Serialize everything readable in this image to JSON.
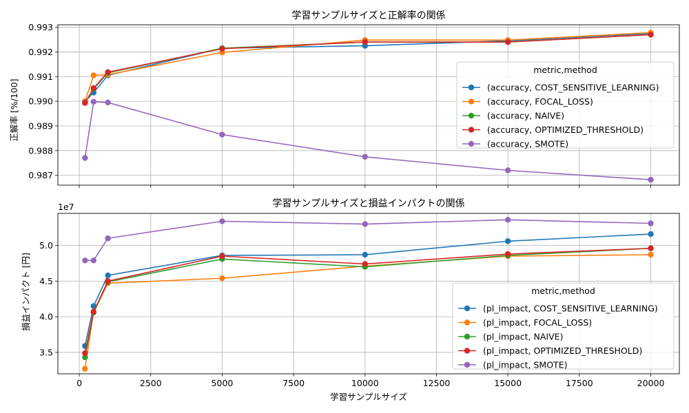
{
  "figure": {
    "shared_xlabel": "学習サンプルサイズ",
    "background": "#ffffff"
  },
  "colors": {
    "COST_SENSITIVE_LEARNING": "#1f77b4",
    "FOCAL_LOSS": "#ff7f0e",
    "NAIVE": "#2ca02c",
    "OPTIMIZED_THRESHOLD": "#d62728",
    "SMOTE": "#9467bd"
  },
  "chart_data": [
    {
      "type": "line",
      "title": "学習サンプルサイズと正解率の関係",
      "xlabel": "",
      "ylabel": "正解率 [%/100]",
      "x": [
        200,
        500,
        1000,
        5000,
        10000,
        15000,
        20000
      ],
      "xlim": [
        -750,
        21000
      ],
      "ylim": [
        0.9866,
        0.9931
      ],
      "xticks": [
        0,
        2500,
        5000,
        7500,
        10000,
        12500,
        15000,
        17500,
        20000
      ],
      "xtick_labels_visible": false,
      "yticks": [
        0.987,
        0.988,
        0.989,
        0.99,
        0.991,
        0.992,
        0.993
      ],
      "ytick_labels": [
        "0.987",
        "0.988",
        "0.989",
        "0.990",
        "0.991",
        "0.992",
        "0.993"
      ],
      "grid": true,
      "legend": {
        "title": "metric,method",
        "placement": "center-right"
      },
      "series": [
        {
          "name": "(accuracy, COST_SENSITIVE_LEARNING)",
          "method": "COST_SENSITIVE_LEARNING",
          "values": [
            0.99,
            0.99035,
            0.99105,
            0.99215,
            0.99225,
            0.99245,
            0.99275
          ]
        },
        {
          "name": "(accuracy, FOCAL_LOSS)",
          "method": "FOCAL_LOSS",
          "values": [
            0.99,
            0.99105,
            0.99108,
            0.99198,
            0.99248,
            0.99248,
            0.99278
          ]
        },
        {
          "name": "(accuracy, NAIVE)",
          "method": "NAIVE",
          "values": [
            0.98995,
            0.9905,
            0.99115,
            0.99215,
            0.9924,
            0.9924,
            0.9927
          ]
        },
        {
          "name": "(accuracy, OPTIMIZED_THRESHOLD)",
          "method": "OPTIMIZED_THRESHOLD",
          "values": [
            0.98993,
            0.99053,
            0.99118,
            0.99213,
            0.9924,
            0.9924,
            0.9927
          ]
        },
        {
          "name": "(accuracy, SMOTE)",
          "method": "SMOTE",
          "values": [
            0.9877,
            0.98998,
            0.98995,
            0.98865,
            0.98775,
            0.9872,
            0.98682
          ]
        }
      ]
    },
    {
      "type": "line",
      "title": "学習サンプルサイズと損益インパクトの関係",
      "xlabel": "学習サンプルサイズ",
      "ylabel": "損益インパクト [円]",
      "y_offset_text": "1e7",
      "x": [
        200,
        500,
        1000,
        5000,
        10000,
        15000,
        20000
      ],
      "xlim": [
        -750,
        21000
      ],
      "ylim": [
        3.2,
        5.45
      ],
      "xticks": [
        0,
        2500,
        5000,
        7500,
        10000,
        12500,
        15000,
        17500,
        20000
      ],
      "xtick_labels": [
        "0",
        "2500",
        "5000",
        "7500",
        "10000",
        "12500",
        "15000",
        "17500",
        "20000"
      ],
      "yticks": [
        3.5,
        4.0,
        4.5,
        5.0
      ],
      "ytick_labels": [
        "3.5",
        "4.0",
        "4.5",
        "5.0"
      ],
      "grid": true,
      "legend": {
        "title": "metric,method",
        "placement": "lower-right"
      },
      "series": [
        {
          "name": "(pl_impact, COST_SENSITIVE_LEARNING)",
          "method": "COST_SENSITIVE_LEARNING",
          "values": [
            3.59,
            4.15,
            4.58,
            4.86,
            4.87,
            5.06,
            5.16
          ]
        },
        {
          "name": "(pl_impact, FOCAL_LOSS)",
          "method": "FOCAL_LOSS",
          "values": [
            3.27,
            4.06,
            4.47,
            4.54,
            4.71,
            4.85,
            4.87
          ]
        },
        {
          "name": "(pl_impact, NAIVE)",
          "method": "NAIVE",
          "values": [
            3.43,
            4.06,
            4.49,
            4.81,
            4.7,
            4.86,
            4.96
          ]
        },
        {
          "name": "(pl_impact, OPTIMIZED_THRESHOLD)",
          "method": "OPTIMIZED_THRESHOLD",
          "values": [
            3.49,
            4.07,
            4.5,
            4.85,
            4.74,
            4.88,
            4.96
          ]
        },
        {
          "name": "(pl_impact, SMOTE)",
          "method": "SMOTE",
          "values": [
            4.79,
            4.79,
            5.1,
            5.34,
            5.3,
            5.36,
            5.31
          ]
        }
      ]
    }
  ]
}
